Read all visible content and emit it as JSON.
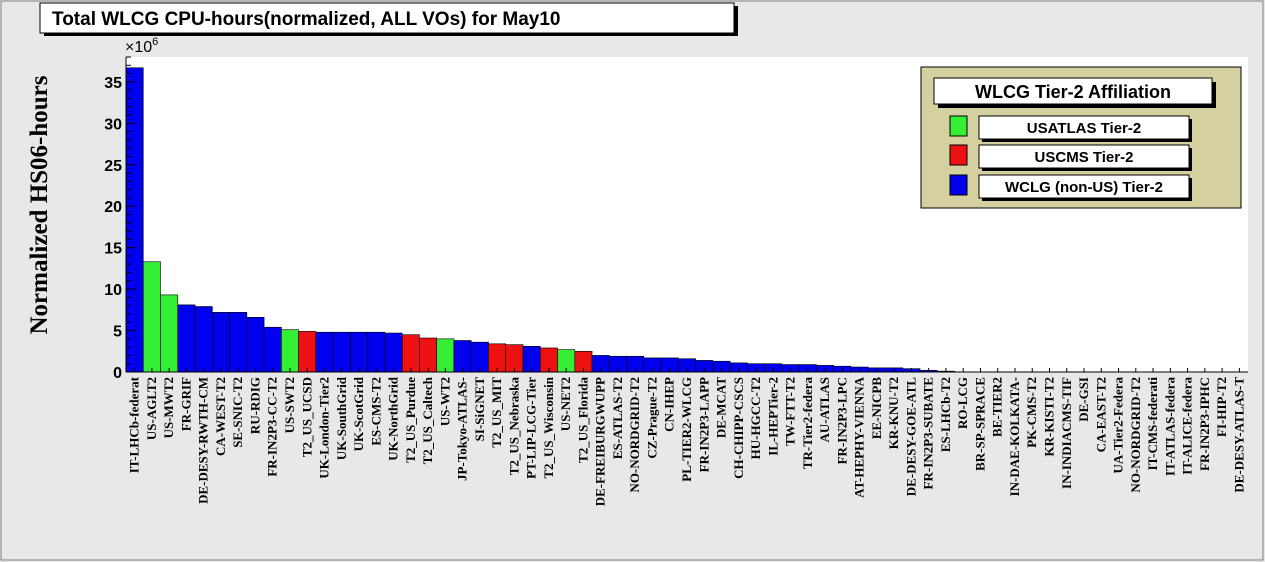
{
  "chart_data": {
    "type": "bar",
    "title": "Total WLCG CPU-hours(normalized, ALL VOs) for May10",
    "ylabel": "Normalized HS06-hours",
    "xlabel": "",
    "y_multiplier": "×10",
    "y_multiplier_exp": "6",
    "ylim": [
      0,
      38
    ],
    "yticks": [
      0,
      5,
      10,
      15,
      20,
      25,
      30,
      35
    ],
    "grid": false,
    "legend_position": "top-right",
    "legend": {
      "title": "WLCG Tier-2 Affiliation",
      "entries": [
        {
          "name": "USATLAS Tier-2",
          "color": "#33ee33"
        },
        {
          "name": "USCMS Tier-2",
          "color": "#ee1111"
        },
        {
          "name": "WCLG (non-US) Tier-2",
          "color": "#0000ee"
        }
      ]
    },
    "colors": {
      "usatlas": "#33ee33",
      "uscms": "#ee1111",
      "wlcg": "#0000ee"
    },
    "categories": [
      "IT-LHCb-federat",
      "US-AGLT2",
      "US-MWT2",
      "FR-GRIF",
      "DE-DESY-RWTH-CM",
      "CA-WEST-T2",
      "SE-SNIC-T2",
      "RU-RDIG",
      "FR-IN2P3-CC-T2",
      "US-SWT2",
      "T2_US_UCSD",
      "UK-London-Tier2",
      "UK-SouthGrid",
      "UK-ScotGrid",
      "ES-CMS-T2",
      "UK-NorthGrid",
      "T2_US_Purdue",
      "T2_US_Caltech",
      "US-WT2",
      "JP-Tokyo-ATLAS-",
      "SI-SiGNET",
      "T2_US_MIT",
      "T2_US_Nebraska",
      "PT-LIP-LCG-Tier",
      "T2_US_Wisconsin",
      "US-NET2",
      "T2_US_Florida",
      "DE-FREIBURGWUPP",
      "ES-ATLAS-T2",
      "NO-NORDGRID-T2",
      "CZ-Prague-T2",
      "CN-IHEP",
      "PL-TIER2-WLCG",
      "FR-IN2P3-LAPP",
      "DE-MCAT",
      "CH-CHIPP-CSCS",
      "HU-HGCC-T2",
      "IL-HEPTier-2",
      "TW-FTT-T2",
      "TR-Tier2-federa",
      "AU-ATLAS",
      "FR-IN2P3-LPC",
      "AT-HEPHY-VIENNA",
      "EE-NICPB",
      "KR-KNU-T2",
      "DE-DESY-GOE-ATL",
      "FR-IN2P3-SUBATE",
      "ES-LHCb-T2",
      "RO-LCG",
      "BR-SP-SPRACE",
      "BE-TIER2",
      "IN-DAE-KOLKATA-",
      "PK-CMS-T2",
      "KR-KISTI-T2",
      "IN-INDIACMS-TIF",
      "DE-GSI",
      "CA-EAST-T2",
      "UA-Tier2-Federa",
      "NO-NORDGRID-T2",
      "IT-CMS-federati",
      "IT-ATLAS-federa",
      "IT-ALICE-federa",
      "FR-IN2P3-IPHC",
      "FI-HIP-T2",
      "DE-DESY-ATLAS-T"
    ],
    "values": [
      36.7,
      13.3,
      9.3,
      8.1,
      7.9,
      7.2,
      7.2,
      6.6,
      5.4,
      5.1,
      4.9,
      4.8,
      4.8,
      4.8,
      4.8,
      4.7,
      4.5,
      4.1,
      4.0,
      3.8,
      3.6,
      3.4,
      3.3,
      3.1,
      2.9,
      2.7,
      2.5,
      2.0,
      1.9,
      1.9,
      1.7,
      1.7,
      1.6,
      1.4,
      1.3,
      1.1,
      1.0,
      1.0,
      0.9,
      0.9,
      0.8,
      0.7,
      0.6,
      0.5,
      0.5,
      0.4,
      0.2,
      0.1,
      0.05,
      0.04,
      0.03,
      0.02,
      0.02,
      0.01,
      0.01,
      0.0,
      0.0,
      0.0,
      0.0,
      0.0,
      0.0,
      0.0,
      0.0,
      0.0,
      0.0
    ],
    "affiliation": [
      "wlcg",
      "usatlas",
      "usatlas",
      "wlcg",
      "wlcg",
      "wlcg",
      "wlcg",
      "wlcg",
      "wlcg",
      "usatlas",
      "uscms",
      "wlcg",
      "wlcg",
      "wlcg",
      "wlcg",
      "wlcg",
      "uscms",
      "uscms",
      "usatlas",
      "wlcg",
      "wlcg",
      "uscms",
      "uscms",
      "wlcg",
      "uscms",
      "usatlas",
      "uscms",
      "wlcg",
      "wlcg",
      "wlcg",
      "wlcg",
      "wlcg",
      "wlcg",
      "wlcg",
      "wlcg",
      "wlcg",
      "wlcg",
      "wlcg",
      "wlcg",
      "wlcg",
      "wlcg",
      "wlcg",
      "wlcg",
      "wlcg",
      "wlcg",
      "wlcg",
      "wlcg",
      "wlcg",
      "wlcg",
      "wlcg",
      "wlcg",
      "wlcg",
      "wlcg",
      "wlcg",
      "wlcg",
      "wlcg",
      "wlcg",
      "wlcg",
      "wlcg",
      "wlcg",
      "wlcg",
      "wlcg",
      "wlcg",
      "wlcg",
      "wlcg"
    ]
  }
}
